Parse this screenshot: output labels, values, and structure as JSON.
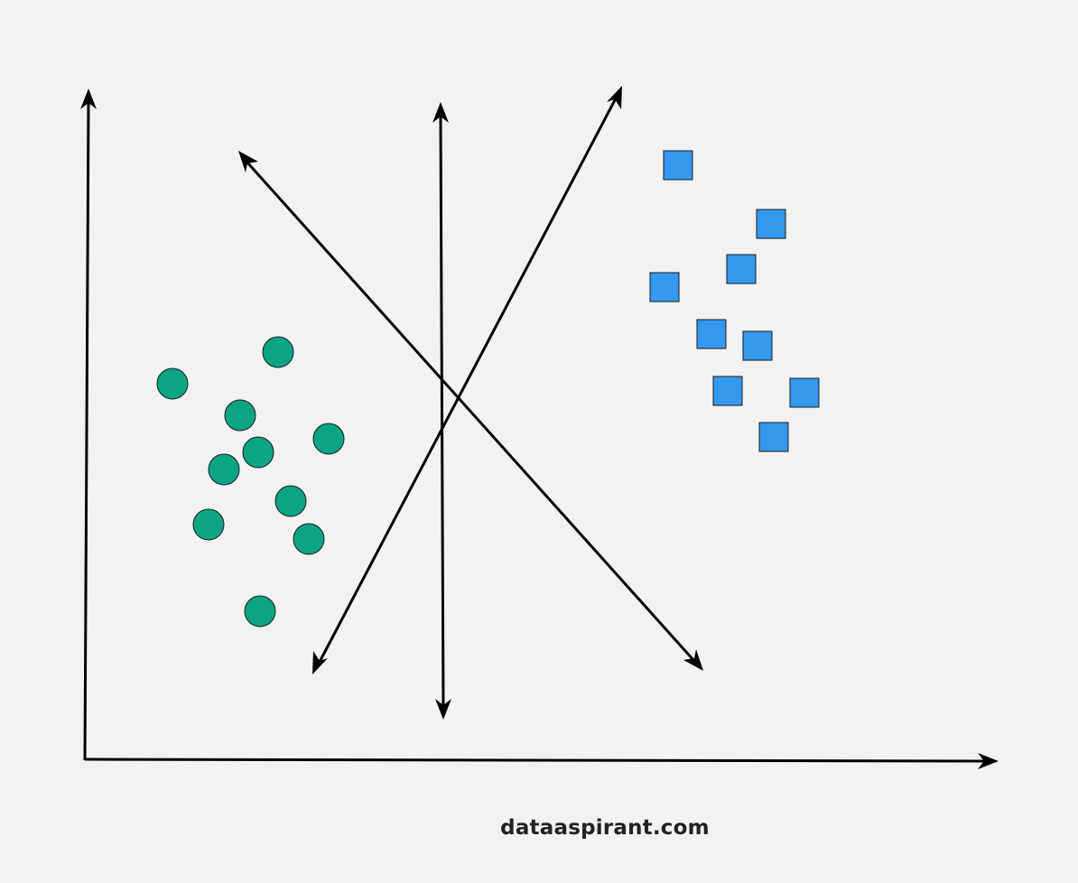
{
  "watermark": "dataaspirant.com",
  "colors": {
    "background": "#f2f2f2",
    "axis": "#000000",
    "line": "#000000",
    "class_a_fill": "#0ba585",
    "class_b_fill": "#3399ee",
    "marker_stroke": "#1a1a1a"
  },
  "legend": {
    "class_a_marker": "circle",
    "class_b_marker": "square"
  }
}
